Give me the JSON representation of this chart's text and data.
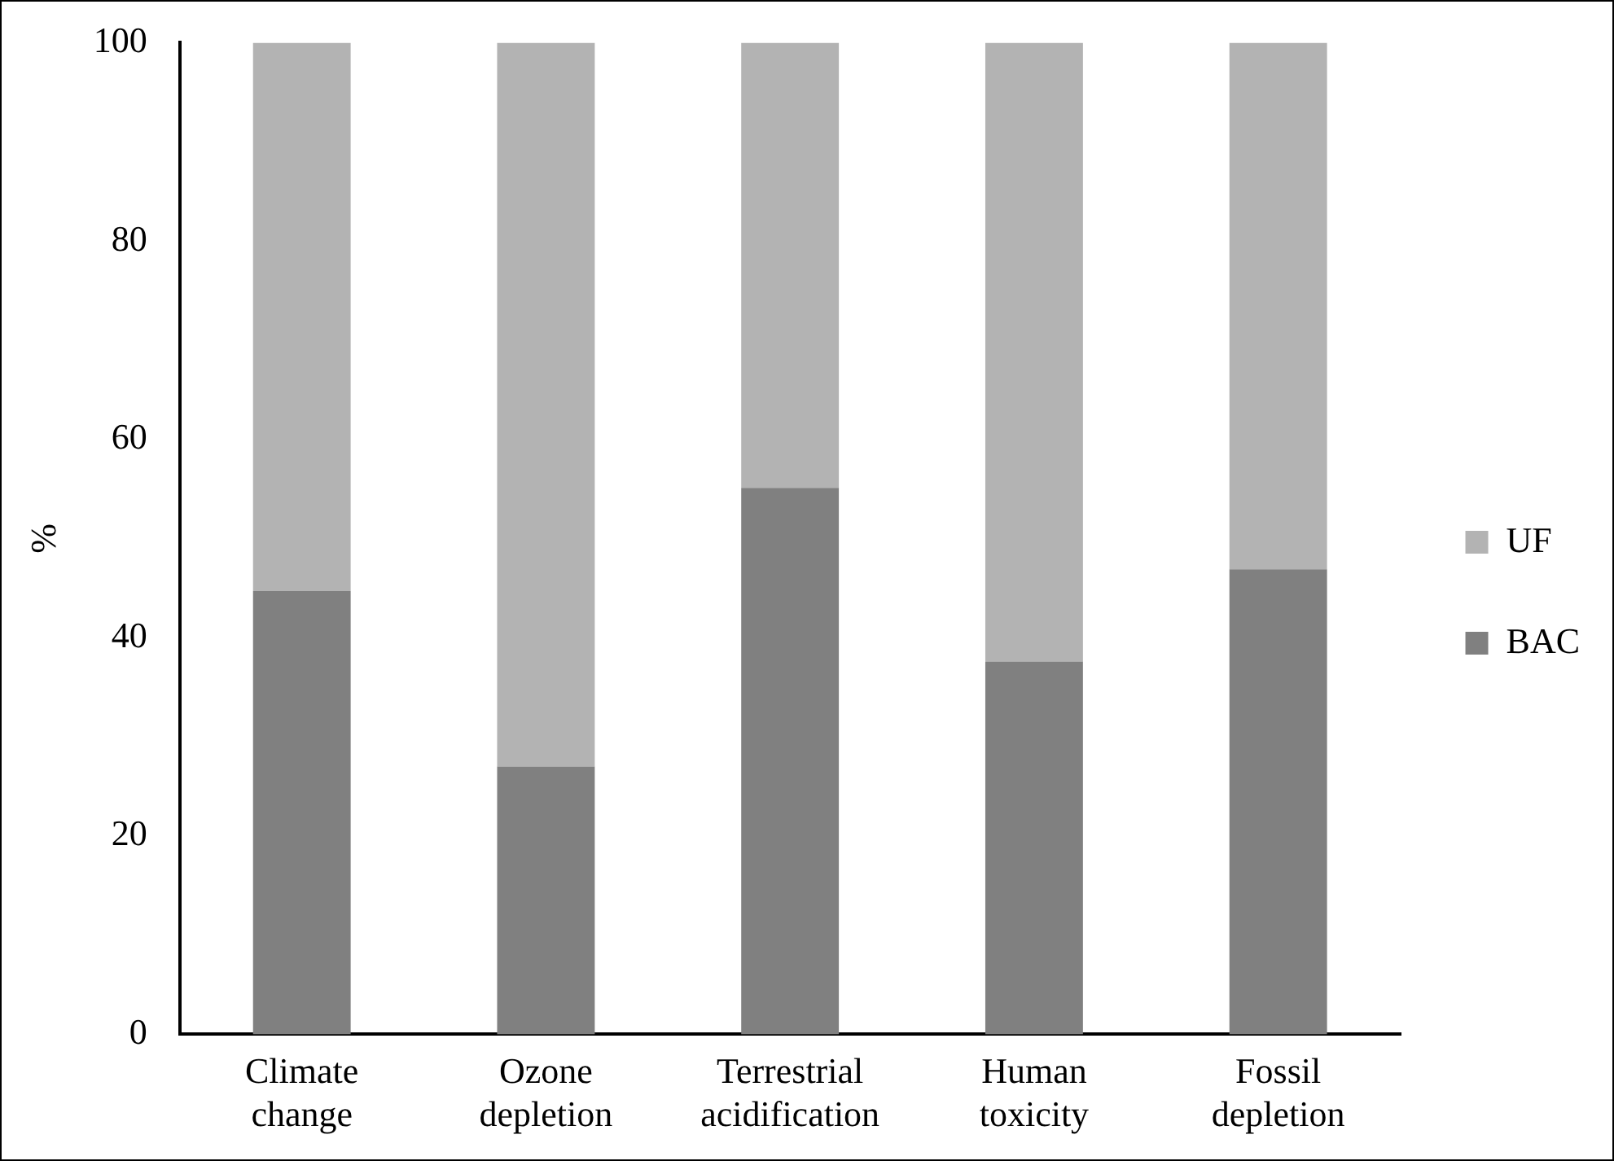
{
  "chart_data": {
    "type": "bar",
    "stacked": true,
    "ylabel": "%",
    "categories": [
      "Climate change",
      "Ozone depletion",
      "Terrestrial acidification",
      "Human toxicity",
      "Fossil depletion"
    ],
    "series": [
      {
        "name": "BAC",
        "color": "#808080",
        "values": [
          44.7,
          27,
          55.1,
          37.6,
          46.9
        ]
      },
      {
        "name": "UF",
        "color": "#b3b3b3",
        "values": [
          55.3,
          73,
          44.9,
          62.4,
          53.1
        ]
      }
    ],
    "ylim": [
      0,
      100
    ],
    "yticks": [
      0,
      20,
      40,
      60,
      80,
      100
    ],
    "grid": false,
    "legend": "right"
  }
}
